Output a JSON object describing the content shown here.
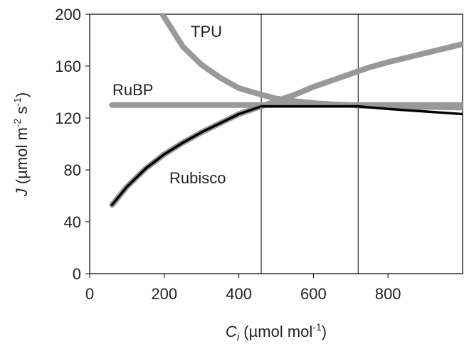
{
  "chart_data": {
    "type": "line",
    "title": "",
    "xlabel": {
      "symbol": "C",
      "sub": "i",
      "unit": " (µmol mol",
      "sup": "-1",
      "close": ")"
    },
    "ylabel": {
      "symbol": "J",
      "unit": " (µmol m",
      "sup1": "-2",
      "mid": " s",
      "sup2": "-1",
      "close": ")"
    },
    "xlim": [
      0,
      1000
    ],
    "ylim": [
      0,
      200
    ],
    "xticks": [
      0,
      200,
      400,
      600,
      800
    ],
    "yticks": [
      0,
      40,
      80,
      120,
      160,
      200
    ],
    "grid": false,
    "legend": "none",
    "vlines": [
      460,
      720
    ],
    "series": [
      {
        "name": "TPU",
        "color": "#999999",
        "x": [
          195,
          250,
          300,
          350,
          400,
          460,
          500,
          550,
          600,
          650,
          700,
          720,
          800,
          900,
          1000
        ],
        "y": [
          200,
          175,
          161,
          151,
          143,
          138,
          135,
          133,
          131.5,
          130.5,
          130,
          129.5,
          129,
          128.5,
          128
        ]
      },
      {
        "name": "RuBP",
        "color": "#999999",
        "x": [
          60,
          200,
          400,
          600,
          800,
          1000
        ],
        "y": [
          130,
          130,
          130,
          130,
          130,
          130
        ]
      },
      {
        "name": "Rubisco",
        "color": "#999999",
        "x": [
          60,
          100,
          150,
          200,
          250,
          300,
          350,
          400,
          460,
          500,
          550,
          600,
          650,
          700,
          750,
          800,
          900,
          1000
        ],
        "y": [
          53,
          67,
          81,
          92,
          101,
          109,
          116,
          123,
          129,
          133,
          138,
          144,
          149,
          154,
          159,
          163,
          170,
          177
        ]
      }
    ],
    "limiting_line": {
      "color": "#000000",
      "x": [
        60,
        100,
        150,
        200,
        250,
        300,
        350,
        400,
        460,
        720,
        800,
        900,
        1000
      ],
      "y": [
        53,
        67,
        81,
        92,
        101,
        109,
        116,
        123,
        129,
        129,
        127,
        125,
        123
      ]
    }
  }
}
